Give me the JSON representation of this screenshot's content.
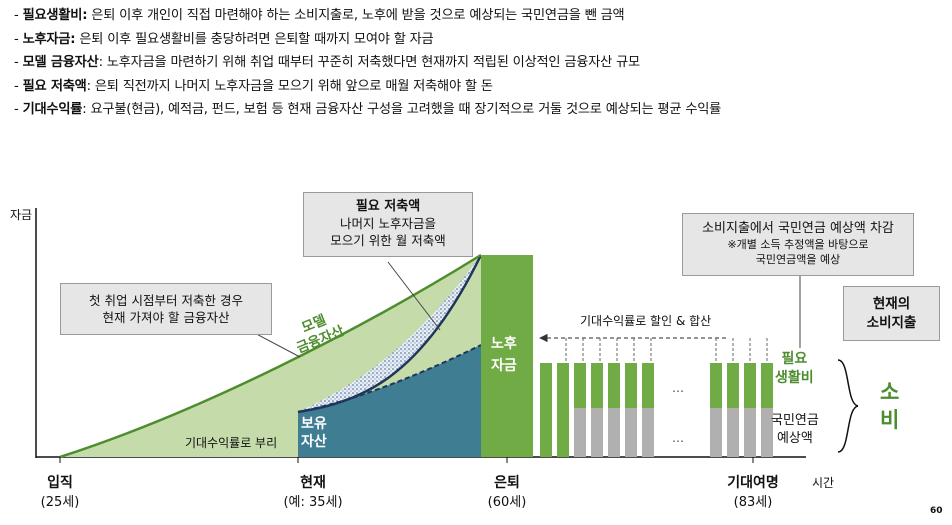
{
  "definitions": [
    {
      "term": "필요생활비",
      "sep": ":",
      "text": " 은퇴 이후 개인이 직접 마련해야 하는 소비지출로, 노후에 받을 것으로 예상되는 국민연금을 뺀 금액"
    },
    {
      "term": "노후자금",
      "sep": ":",
      "text": " 은퇴 이후 필요생활비를 충당하려면 은퇴할 때까지 모여야 할 자금"
    },
    {
      "term": "모델 금융자산",
      "sep": ":",
      "text": " 노후자금을 마련하기 위해 취업 때부터 꾸준히 저축했다면 현재까지 적립된 이상적인 금융자산 규모"
    },
    {
      "term": "필요 저축액",
      "sep": ":",
      "text": " 은퇴 직전까지 나머지 노후자금을 모으기 위해 앞으로 매월 저축해야 할 돈"
    },
    {
      "term": "기대수익률",
      "sep": ":",
      "text": " 요구불(현금), 예적금, 펀드, 보험 등 현재 금융자산 구성을 고려했을 때 장기적으로 거둘 것으로 예상되는 평균 수익률"
    }
  ],
  "diagram": {
    "y_axis_label": "자금",
    "x_axis_label": "시간",
    "callout_model_assets": {
      "line1": "첫 취업 시점부터 저축한 경우",
      "line2": "현재 가져야 할 금융자산"
    },
    "callout_required_savings": {
      "title": "필요 저축액",
      "line1": "나머지 노후자금을",
      "line2": "모으기 위한 월 저축액"
    },
    "callout_consumption": {
      "line1": "소비지출에서 국민연금 예상액 차감",
      "line2": "※개별 소득 추정액을 바탕으로",
      "line3": "국민연금액을 예상"
    },
    "model_assets_label": {
      "line1": "모델",
      "line2": "금융자산"
    },
    "compound_growth_label": "기대수익률로 부리",
    "held_assets_label": {
      "line1": "보유",
      "line2": "자산"
    },
    "retirement_fund_label": {
      "line1": "노후",
      "line2": "자금"
    },
    "discount_label": "기대수익률로 할인 & 합산",
    "ellipsis": "…",
    "required_living_label": {
      "line1": "필요",
      "line2": "생활비"
    },
    "national_pension_label": {
      "line1": "국민연금",
      "line2": "예상액"
    },
    "current_consumption": {
      "line1": "현재의",
      "line2": "소비지출"
    },
    "consumption_label": {
      "line1": "소",
      "line2": "비"
    },
    "x_points": [
      {
        "title": "입직",
        "sub": "(25세)"
      },
      {
        "title": "현재",
        "sub": "(예: 35세)"
      },
      {
        "title": "은퇴",
        "sub": "(60세)"
      },
      {
        "title": "기대여명",
        "sub": "(83세)"
      }
    ],
    "page_number": "60",
    "colors": {
      "light_green": "#c5dcaa",
      "green": "#71ab46",
      "teal": "#3f7d93",
      "navy": "#1f3559",
      "gray": "#b0b0b0",
      "label_green": "#4e8d2f"
    }
  }
}
